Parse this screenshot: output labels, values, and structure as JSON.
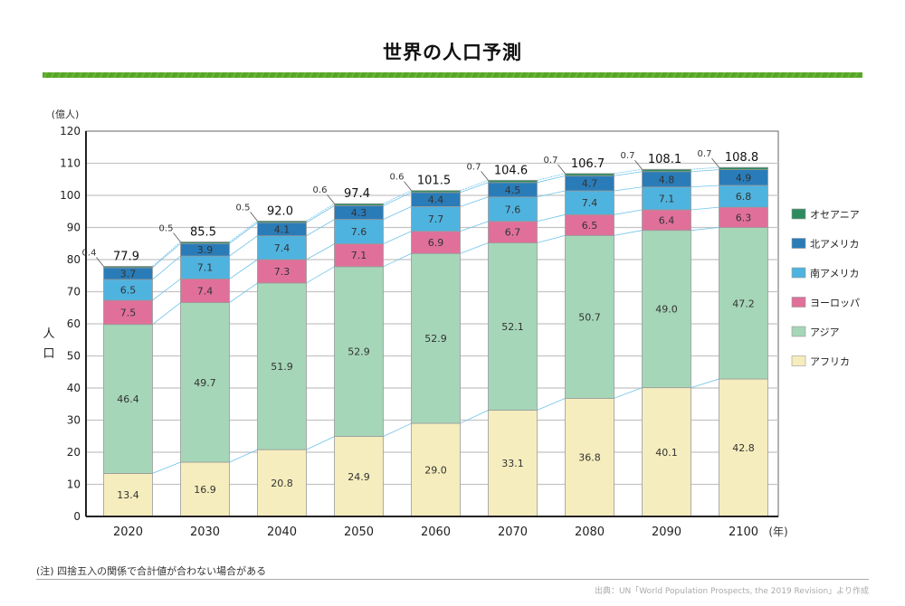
{
  "page": {
    "title": "世界の人口予測",
    "note": "(注) 四捨五入の関係で合計値が合わない場合がある",
    "source": "出典：UN「World Population Prospects, the 2019 Revision」より作成"
  },
  "chart_data": {
    "type": "bar",
    "stacked": true,
    "title": "世界の人口予測",
    "xlabel": "(年)",
    "ylabel": "人口",
    "yunit": "(億人)",
    "ylim": [
      0,
      120
    ],
    "yticks": [
      0,
      10,
      20,
      30,
      40,
      50,
      60,
      70,
      80,
      90,
      100,
      110,
      120
    ],
    "grid": true,
    "legend_position": "right",
    "categories": [
      "2020",
      "2030",
      "2040",
      "2050",
      "2060",
      "2070",
      "2080",
      "2090",
      "2100"
    ],
    "totals": [
      "77.9",
      "85.5",
      "92.0",
      "97.4",
      "101.5",
      "104.6",
      "106.7",
      "108.1",
      "108.8"
    ],
    "series": [
      {
        "name": "アフリカ",
        "color": "#f5edbd",
        "values": [
          13.4,
          16.9,
          20.8,
          24.9,
          29.0,
          33.1,
          36.8,
          40.1,
          42.8
        ]
      },
      {
        "name": "アジア",
        "color": "#a5d6b8",
        "values": [
          46.4,
          49.7,
          51.9,
          52.9,
          52.9,
          52.1,
          50.7,
          49.0,
          47.2
        ]
      },
      {
        "name": "ヨーロッパ",
        "color": "#e0709a",
        "values": [
          7.5,
          7.4,
          7.3,
          7.1,
          6.9,
          6.7,
          6.5,
          6.4,
          6.3
        ]
      },
      {
        "name": "南アメリカ",
        "color": "#4fb3df",
        "values": [
          6.5,
          7.1,
          7.4,
          7.6,
          7.7,
          7.6,
          7.4,
          7.1,
          6.8
        ]
      },
      {
        "name": "北アメリカ",
        "color": "#2a7cb8",
        "values": [
          3.7,
          3.9,
          4.1,
          4.3,
          4.4,
          4.5,
          4.7,
          4.8,
          4.9
        ]
      },
      {
        "name": "オセアニア",
        "color": "#2e8b5f",
        "values": [
          0.4,
          0.5,
          0.5,
          0.6,
          0.6,
          0.7,
          0.7,
          0.7,
          0.7
        ]
      }
    ],
    "legend_order": [
      "オセアニア",
      "北アメリカ",
      "南アメリカ",
      "ヨーロッパ",
      "アジア",
      "アフリカ"
    ],
    "connector_color": "#6fc3ea"
  }
}
